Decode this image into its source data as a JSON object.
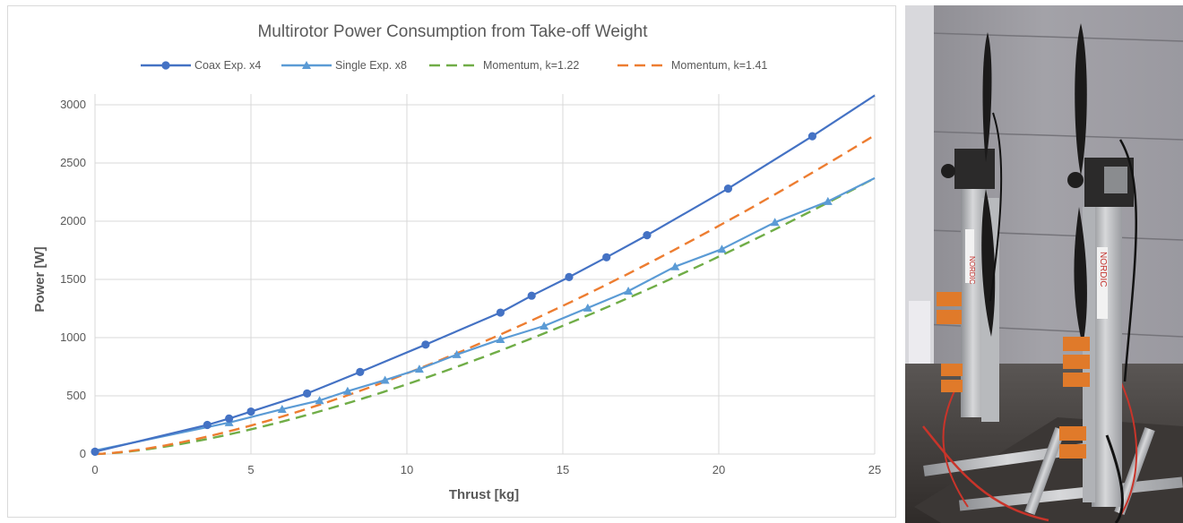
{
  "chart_data": {
    "type": "line",
    "title": "Multirotor Power Consumption from Take-off Weight",
    "xlabel": "Thrust [kg]",
    "ylabel": "Power [W]",
    "xlim": [
      0,
      25
    ],
    "ylim": [
      0,
      3000
    ],
    "xticks": [
      0,
      5,
      10,
      15,
      20,
      25
    ],
    "yticks": [
      0,
      500,
      1000,
      1500,
      2000,
      2500,
      3000
    ],
    "grid": true,
    "legend_position": "top",
    "series": [
      {
        "name": "Coax Exp. x4",
        "style": "solid-circle",
        "color": "#4472c4",
        "x": [
          0,
          3.6,
          4.3,
          5.0,
          6.8,
          8.5,
          10.6,
          13.0,
          14.0,
          15.2,
          16.4,
          17.7,
          20.3,
          23.0,
          25.0
        ],
        "y": [
          20,
          250,
          305,
          365,
          520,
          705,
          940,
          1215,
          1360,
          1520,
          1690,
          1880,
          2280,
          2730,
          3080
        ],
        "markers": [
          true,
          true,
          true,
          true,
          true,
          true,
          true,
          true,
          true,
          true,
          true,
          true,
          true,
          true,
          false
        ]
      },
      {
        "name": "Single Exp. x8",
        "style": "solid-triangle",
        "color": "#5b9bd5",
        "x": [
          0,
          4.3,
          6.0,
          7.2,
          8.1,
          9.3,
          10.4,
          11.6,
          13.0,
          14.4,
          15.8,
          17.1,
          18.6,
          20.1,
          21.8,
          23.5,
          25.0
        ],
        "y": [
          30,
          270,
          385,
          460,
          540,
          635,
          730,
          855,
          985,
          1100,
          1255,
          1400,
          1610,
          1760,
          1990,
          2170,
          2370
        ],
        "markers": [
          false,
          true,
          true,
          true,
          true,
          true,
          true,
          true,
          true,
          true,
          true,
          true,
          true,
          true,
          true,
          true,
          false
        ]
      },
      {
        "name": "Momentum, k=1.22",
        "style": "dashed",
        "color": "#70ad47",
        "formula": {
          "a": 18.96,
          "exp": 1.5
        }
      },
      {
        "name": "Momentum, k=1.41",
        "style": "dashed",
        "color": "#ed7d31",
        "formula": {
          "a": 21.91,
          "exp": 1.5
        }
      }
    ]
  },
  "colors": {
    "grid": "#d9d9d9",
    "axis_text": "#595959",
    "title_text": "#595959"
  },
  "photo": {
    "description_icon": "coaxial-rotor-test-stand-photo-icon"
  }
}
